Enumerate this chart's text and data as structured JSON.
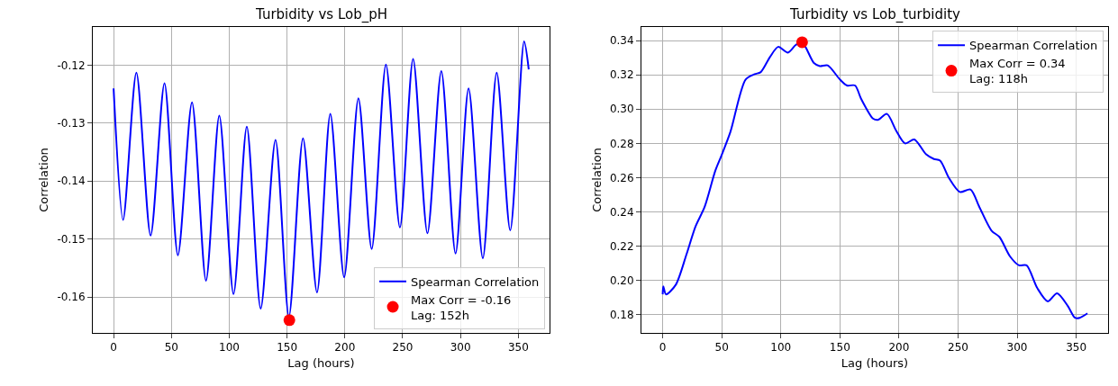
{
  "chart_data": [
    {
      "type": "line",
      "title": "Turbidity vs Lob_pH",
      "xlabel": "Lag (hours)",
      "ylabel": "Correlation",
      "xlim": [
        -18,
        377
      ],
      "xticks": [
        0,
        50,
        100,
        150,
        200,
        250,
        300,
        350
      ],
      "ylim": [
        -0.1662,
        -0.1134
      ],
      "yticks": [
        -0.16,
        -0.15,
        -0.14,
        -0.13,
        -0.12
      ],
      "grid": true,
      "legend": "bottom right",
      "series": [
        {
          "name": "Spearman Correlation",
          "color": "#0000ff",
          "x": [
            0,
            8.2,
            19.7,
            32,
            44,
            55.6,
            67.8,
            79.9,
            91.4,
            103.7,
            115.2,
            127.2,
            140,
            151.6,
            163.8,
            175.9,
            187.4,
            199.4,
            211.7,
            223.2,
            235.5,
            247.6,
            259,
            271.4,
            283.4,
            295.7,
            307,
            319.3,
            331.3,
            343,
            355,
            359
          ],
          "values": [
            -0.124,
            -0.1467,
            -0.1213,
            -0.1494,
            -0.1231,
            -0.1528,
            -0.1264,
            -0.1572,
            -0.1287,
            -0.1595,
            -0.1306,
            -0.162,
            -0.1329,
            -0.1634,
            -0.1326,
            -0.1592,
            -0.1284,
            -0.1566,
            -0.1257,
            -0.1517,
            -0.1199,
            -0.148,
            -0.1189,
            -0.149,
            -0.121,
            -0.1525,
            -0.124,
            -0.1533,
            -0.1213,
            -0.1485,
            -0.1159,
            -0.1207
          ]
        },
        {
          "name": "Max Corr = -0.16\nLag: 152h",
          "type": "scatter",
          "color": "#ff0000",
          "x": [
            152
          ],
          "values": [
            -0.164
          ]
        }
      ]
    },
    {
      "type": "line",
      "title": "Turbidity vs Lob_turbidity",
      "xlabel": "Lag (hours)",
      "ylabel": "Correlation",
      "xlim": [
        -18,
        377
      ],
      "xticks": [
        0,
        50,
        100,
        150,
        200,
        250,
        300,
        350
      ],
      "ylim": [
        0.1695,
        0.3479
      ],
      "yticks": [
        0.18,
        {
          "value": 0.2,
          "label": "0.20"
        },
        0.22,
        0.24,
        0.26,
        0.28,
        {
          "value": 0.3,
          "label": "0.30"
        },
        0.32,
        0.34
      ],
      "grid": true,
      "legend": "top right",
      "series": [
        {
          "name": "Spearman Correlation",
          "color": "#0000ff",
          "x": [
            0,
            0.5,
            2.8,
            11,
            20,
            27.8,
            35.5,
            44.5,
            49.6,
            57.3,
            70.2,
            77.9,
            83,
            90.8,
            97.7,
            106,
            112.6,
            118,
            128,
            133,
            139.6,
            150,
            156,
            162.8,
            168,
            178,
            182,
            189.8,
            197.5,
            205.2,
            213,
            223,
            229.6,
            234.8,
            242.5,
            251.5,
            260.5,
            268,
            278.5,
            285,
            294,
            301.6,
            308,
            317,
            326,
            333.8,
            342.8,
            349,
            353,
            359.5
          ],
          "values": [
            0.192,
            0.1966,
            0.192,
            0.1975,
            0.215,
            0.2316,
            0.243,
            0.264,
            0.2727,
            0.2867,
            0.3173,
            0.3204,
            0.3216,
            0.3304,
            0.3363,
            0.333,
            0.3374,
            0.339,
            0.3269,
            0.3251,
            0.3255,
            0.3173,
            0.3138,
            0.3138,
            0.3059,
            0.2945,
            0.2937,
            0.2972,
            0.2876,
            0.28,
            0.2823,
            0.2736,
            0.2709,
            0.27,
            0.2596,
            0.2517,
            0.2531,
            0.243,
            0.229,
            0.2255,
            0.2141,
            0.2089,
            0.2089,
            0.1957,
            0.1879,
            0.1926,
            0.1853,
            0.1783,
            0.1783,
            0.1809
          ]
        },
        {
          "name": "Max Corr = 0.34\nLag: 118h",
          "type": "scatter",
          "color": "#ff0000",
          "x": [
            118
          ],
          "values": [
            0.339
          ]
        }
      ]
    }
  ]
}
